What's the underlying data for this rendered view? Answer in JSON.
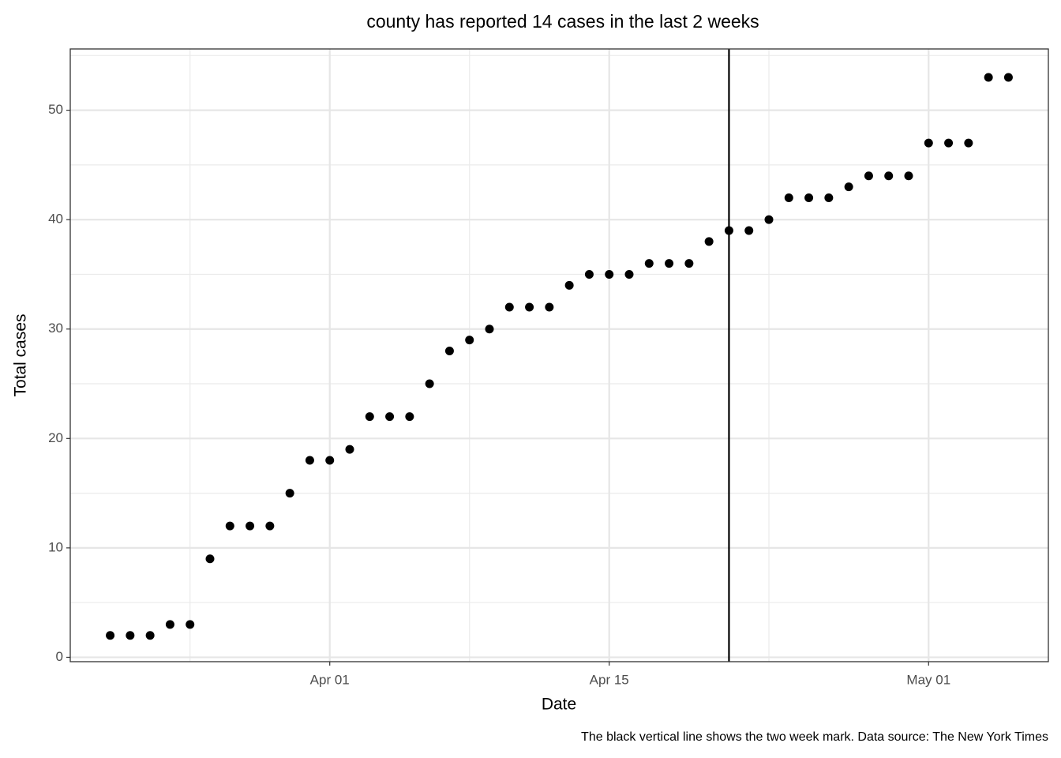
{
  "chart_data": {
    "type": "scatter",
    "title": "county has reported 14 cases in the last 2 weeks",
    "x_label": "Date",
    "y_label": "Total cases",
    "caption": "The black vertical line shows the two week mark. Data source: The New York Times",
    "x": [
      "03-21",
      "03-22",
      "03-23",
      "03-24",
      "03-25",
      "03-26",
      "03-27",
      "03-28",
      "03-29",
      "03-30",
      "03-31",
      "04-01",
      "04-02",
      "04-03",
      "04-04",
      "04-05",
      "04-06",
      "04-07",
      "04-08",
      "04-09",
      "04-10",
      "04-11",
      "04-12",
      "04-13",
      "04-14",
      "04-15",
      "04-16",
      "04-17",
      "04-18",
      "04-19",
      "04-20",
      "04-21",
      "04-22",
      "04-23",
      "04-24",
      "04-25",
      "04-26",
      "04-27",
      "04-28",
      "04-29",
      "04-30",
      "05-01",
      "05-02",
      "05-03",
      "05-04",
      "05-05"
    ],
    "values": [
      2,
      2,
      2,
      3,
      3,
      9,
      12,
      12,
      12,
      15,
      18,
      18,
      19,
      22,
      22,
      22,
      25,
      28,
      29,
      30,
      32,
      32,
      32,
      34,
      35,
      35,
      35,
      36,
      36,
      36,
      38,
      39,
      39,
      40,
      42,
      42,
      42,
      43,
      44,
      44,
      44,
      47,
      47,
      47,
      53,
      53
    ],
    "color": "#000000",
    "vline": "04-21",
    "xlim": [
      "03-19",
      "05-07"
    ],
    "xticks": [
      {
        "value": "04-01",
        "label": "Apr 01"
      },
      {
        "value": "04-15",
        "label": "Apr 15"
      },
      {
        "value": "05-01",
        "label": "May 01"
      }
    ],
    "ylim": [
      -0.4,
      55.6
    ],
    "yticks": [
      0,
      10,
      20,
      30,
      40,
      50
    ],
    "grid": true
  }
}
